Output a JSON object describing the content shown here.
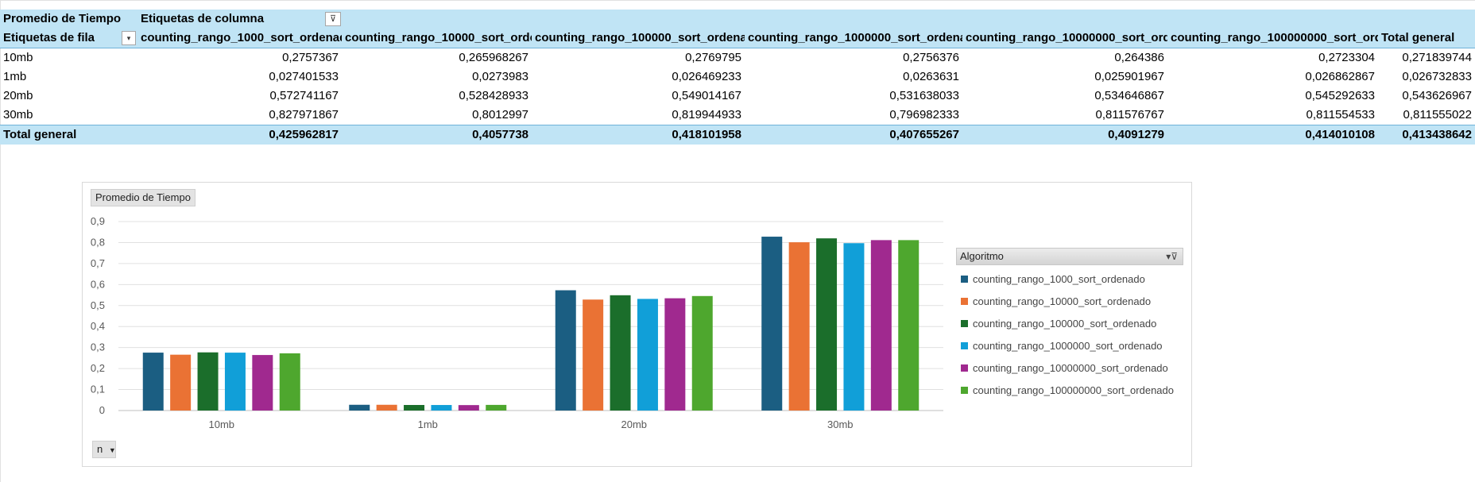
{
  "pivot": {
    "corner_label": "Promedio de Tiempo",
    "col_label_header": "Etiquetas de columna",
    "row_label_header": "Etiquetas de fila",
    "columns": [
      "counting_rango_1000_sort_ordenado",
      "counting_rango_10000_sort_ordenado",
      "counting_rango_100000_sort_ordenado",
      "counting_rango_1000000_sort_ordenado",
      "counting_rango_10000000_sort_ordenado",
      "counting_rango_100000000_sort_ordenado",
      "Total general"
    ],
    "rows": [
      {
        "label": "10mb",
        "values": [
          "0,2757367",
          "0,265968267",
          "0,2769795",
          "0,2756376",
          "0,264386",
          "0,2723304",
          "0,271839744"
        ]
      },
      {
        "label": "1mb",
        "values": [
          "0,027401533",
          "0,0273983",
          "0,026469233",
          "0,0263631",
          "0,025901967",
          "0,026862867",
          "0,026732833"
        ]
      },
      {
        "label": "20mb",
        "values": [
          "0,572741167",
          "0,528428933",
          "0,549014167",
          "0,531638033",
          "0,534646867",
          "0,545292633",
          "0,543626967"
        ]
      },
      {
        "label": "30mb",
        "values": [
          "0,827971867",
          "0,8012997",
          "0,819944933",
          "0,796982333",
          "0,811576767",
          "0,811554533",
          "0,811555022"
        ]
      }
    ],
    "total": {
      "label": "Total general",
      "values": [
        "0,425962817",
        "0,4057738",
        "0,418101958",
        "0,407655267",
        "0,4091279",
        "0,414010108",
        "0,413438642"
      ]
    }
  },
  "chart": {
    "value_field_button": "Promedio de Tiempo",
    "axis_field_button": "n",
    "legend_title": "Algoritmo"
  },
  "chart_data": {
    "type": "bar",
    "categories": [
      "10mb",
      "1mb",
      "20mb",
      "30mb"
    ],
    "ylim": [
      0,
      0.9
    ],
    "yticks": [
      "0",
      "0,1",
      "0,2",
      "0,3",
      "0,4",
      "0,5",
      "0,6",
      "0,7",
      "0,8",
      "0,9"
    ],
    "grid": true,
    "legend_position": "right",
    "series": [
      {
        "name": "counting_rango_1000_sort_ordenado",
        "color": "#1b5e82",
        "values": [
          0.2757367,
          0.027401533,
          0.572741167,
          0.827971867
        ]
      },
      {
        "name": "counting_rango_10000_sort_ordenado",
        "color": "#ea7234",
        "values": [
          0.265968267,
          0.0273983,
          0.528428933,
          0.8012997
        ]
      },
      {
        "name": "counting_rango_100000_sort_ordenado",
        "color": "#1b6e2b",
        "values": [
          0.2769795,
          0.026469233,
          0.549014167,
          0.819944933
        ]
      },
      {
        "name": "counting_rango_1000000_sort_ordenado",
        "color": "#119fd8",
        "values": [
          0.2756376,
          0.0263631,
          0.531638033,
          0.796982333
        ]
      },
      {
        "name": "counting_rango_10000000_sort_ordenado",
        "color": "#a0298f",
        "values": [
          0.264386,
          0.025901967,
          0.534646867,
          0.811576767
        ]
      },
      {
        "name": "counting_rango_100000000_sort_ordenado",
        "color": "#4ea72e",
        "values": [
          0.2723304,
          0.026862867,
          0.545292633,
          0.811554533
        ]
      }
    ]
  }
}
